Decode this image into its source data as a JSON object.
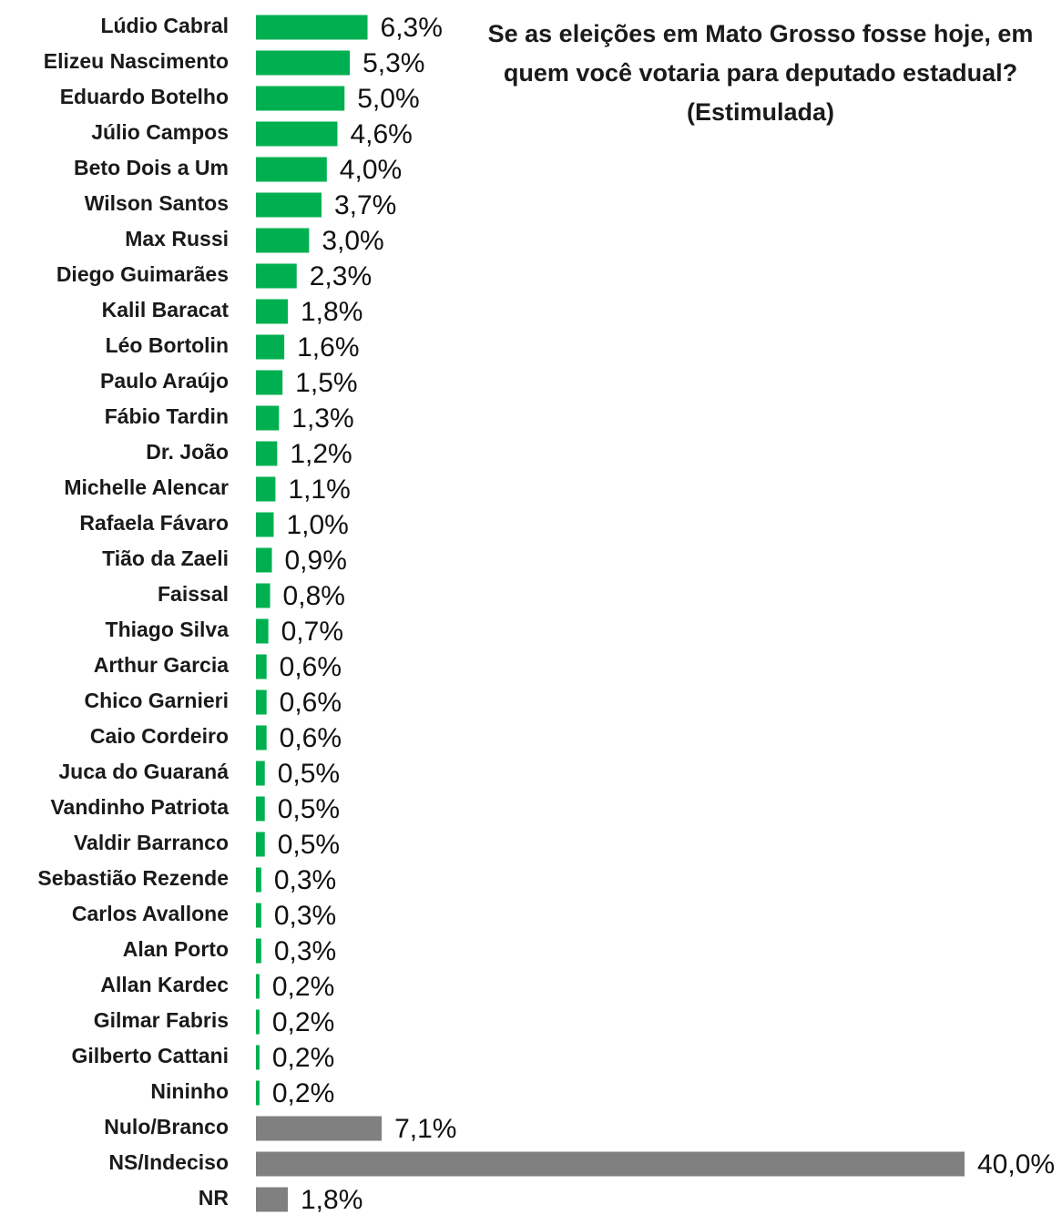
{
  "chart_data": {
    "type": "barh",
    "title": "Se as eleições em Mato Grosso fosse hoje, em quem você votaria para deputado estadual?",
    "subtitle": "(Estimulada)",
    "categories": [
      "Lúdio Cabral",
      "Elizeu Nascimento",
      "Eduardo Botelho",
      "Júlio Campos",
      "Beto Dois a Um",
      "Wilson Santos",
      "Max Russi",
      "Diego Guimarães",
      "Kalil Baracat",
      "Léo Bortolin",
      "Paulo Araújo",
      "Fábio Tardin",
      "Dr. João",
      "Michelle Alencar",
      "Rafaela Fávaro",
      "Tião da Zaeli",
      "Faissal",
      "Thiago Silva",
      "Arthur Garcia",
      "Chico Garnieri",
      "Caio Cordeiro",
      "Juca do Guaraná",
      "Vandinho Patriota",
      "Valdir Barranco",
      "Sebastião Rezende",
      "Carlos Avallone",
      "Alan Porto",
      "Allan Kardec",
      "Gilmar Fabris",
      "Gilberto Cattani",
      "Nininho",
      "Nulo/Branco",
      "NS/Indeciso",
      "NR"
    ],
    "values": [
      6.3,
      5.3,
      5.0,
      4.6,
      4.0,
      3.7,
      3.0,
      2.3,
      1.8,
      1.6,
      1.5,
      1.3,
      1.2,
      1.1,
      1.0,
      0.9,
      0.8,
      0.7,
      0.6,
      0.6,
      0.6,
      0.5,
      0.5,
      0.5,
      0.3,
      0.3,
      0.3,
      0.2,
      0.2,
      0.2,
      0.2,
      7.1,
      40.0,
      1.8
    ],
    "value_labels": [
      "6,3%",
      "5,3%",
      "5,0%",
      "4,6%",
      "4,0%",
      "3,7%",
      "3,0%",
      "2,3%",
      "1,8%",
      "1,6%",
      "1,5%",
      "1,3%",
      "1,2%",
      "1,1%",
      "1,0%",
      "0,9%",
      "0,8%",
      "0,7%",
      "0,6%",
      "0,6%",
      "0,6%",
      "0,5%",
      "0,5%",
      "0,5%",
      "0,3%",
      "0,3%",
      "0,3%",
      "0,2%",
      "0,2%",
      "0,2%",
      "0,2%",
      "7,1%",
      "40,0%",
      "1,8%"
    ],
    "colors": [
      "#00b050",
      "#00b050",
      "#00b050",
      "#00b050",
      "#00b050",
      "#00b050",
      "#00b050",
      "#00b050",
      "#00b050",
      "#00b050",
      "#00b050",
      "#00b050",
      "#00b050",
      "#00b050",
      "#00b050",
      "#00b050",
      "#00b050",
      "#00b050",
      "#00b050",
      "#00b050",
      "#00b050",
      "#00b050",
      "#00b050",
      "#00b050",
      "#00b050",
      "#00b050",
      "#00b050",
      "#00b050",
      "#00b050",
      "#00b050",
      "#00b050",
      "#808080",
      "#808080",
      "#808080"
    ],
    "xlim": [
      0,
      40
    ]
  }
}
